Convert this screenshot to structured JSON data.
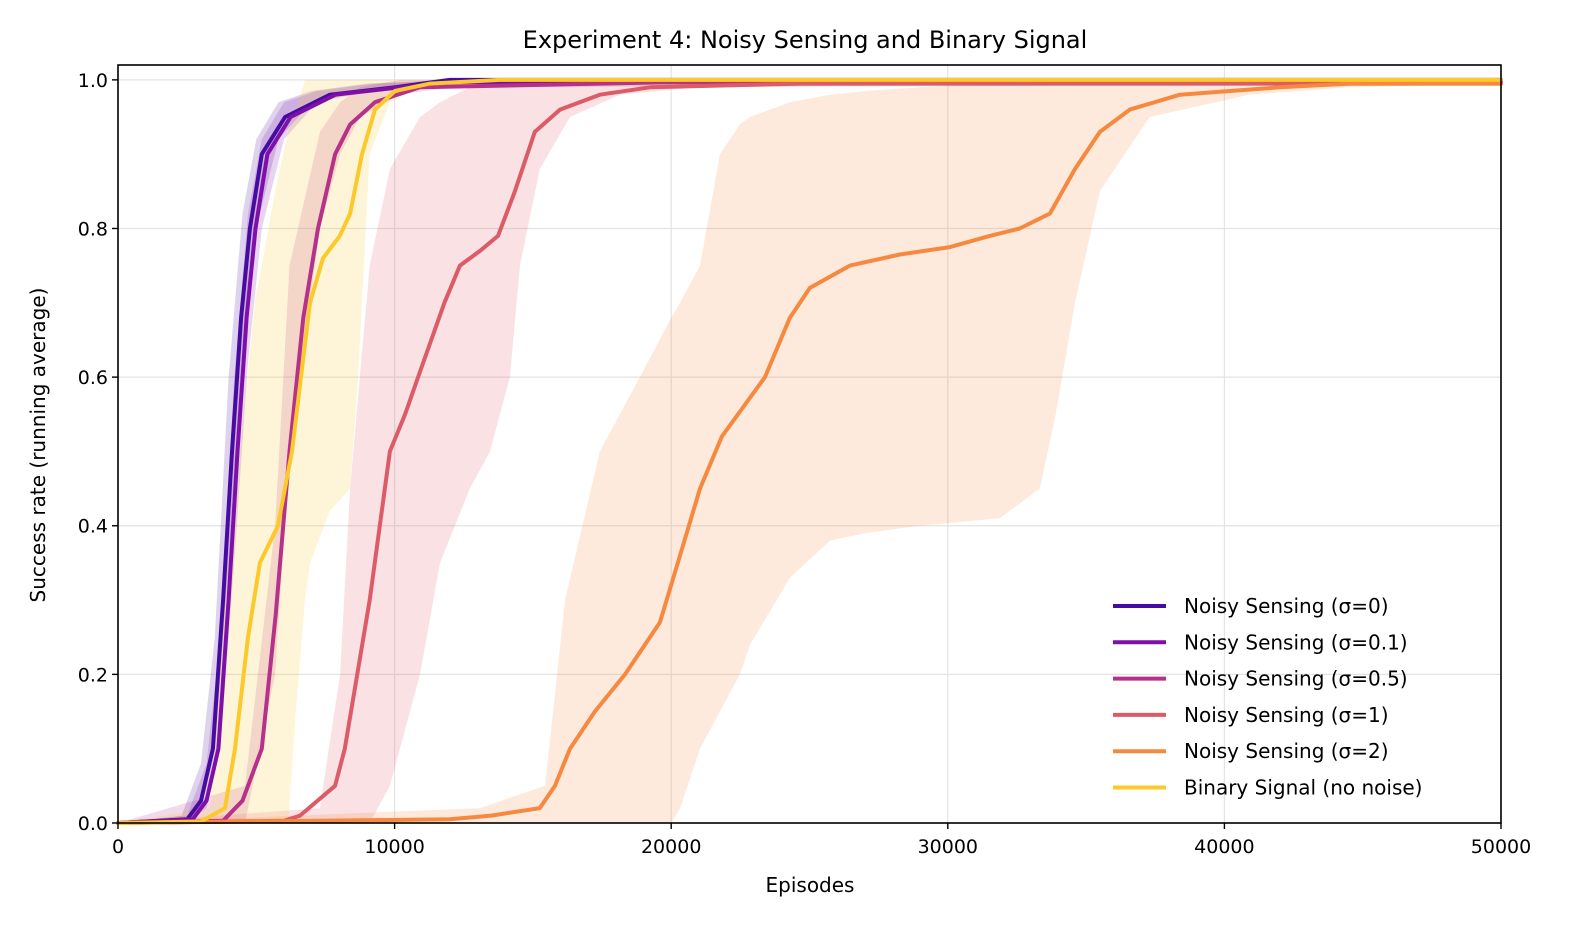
{
  "chart_data": {
    "type": "line",
    "title": "Experiment 4: Noisy Sensing and Binary Signal",
    "xlabel": "Episodes",
    "ylabel": "Success rate (running average)",
    "xlim": [
      0,
      50000
    ],
    "ylim": [
      0,
      1.02
    ],
    "xticks": [
      0,
      10000,
      20000,
      30000,
      40000,
      50000
    ],
    "xtick_labels": [
      "0",
      "10000",
      "20000",
      "30000",
      "40000",
      "50000"
    ],
    "yticks": [
      0,
      0.2,
      0.4,
      0.6,
      0.8,
      1.0
    ],
    "ytick_labels": [
      "0.0",
      "0.2",
      "0.4",
      "0.6",
      "0.8",
      "1.0"
    ],
    "grid": true,
    "legend_position": "lower-right",
    "series": [
      {
        "name": "Noisy Sensing (σ=0)",
        "color": "#460ba0",
        "x": [
          0,
          2500,
          3000,
          3430,
          3800,
          4120,
          4450,
          4770,
          5200,
          6040,
          7660,
          10000,
          12000,
          50000
        ],
        "y": [
          0,
          0.005,
          0.03,
          0.1,
          0.3,
          0.5,
          0.68,
          0.8,
          0.9,
          0.95,
          0.98,
          0.99,
          1.0,
          1.0
        ],
        "band": {
          "x": [
            0,
            2300,
            3000,
            3500,
            4000,
            4500,
            5000,
            5800,
            7000,
            9000,
            12000,
            50000
          ],
          "lower": [
            0,
            0,
            0.02,
            0.1,
            0.35,
            0.62,
            0.8,
            0.92,
            0.97,
            0.985,
            0.995,
            1.0
          ],
          "upper": [
            0,
            0.01,
            0.08,
            0.25,
            0.6,
            0.82,
            0.92,
            0.97,
            0.985,
            0.995,
            1.0,
            1.0
          ]
        }
      },
      {
        "name": "Noisy Sensing (σ=0.1)",
        "color": "#7e0fa8",
        "x": [
          0,
          2700,
          3200,
          3630,
          4000,
          4320,
          4650,
          4970,
          5400,
          6240,
          7860,
          10200,
          12200,
          50000
        ],
        "y": [
          0,
          0.005,
          0.03,
          0.1,
          0.3,
          0.5,
          0.68,
          0.8,
          0.9,
          0.95,
          0.98,
          0.99,
          0.997,
          0.997
        ],
        "band": {
          "x": [
            0,
            2500,
            3200,
            3700,
            4200,
            4700,
            5200,
            6000,
            7200,
            9200,
            12200,
            50000
          ],
          "lower": [
            0,
            0,
            0.02,
            0.1,
            0.35,
            0.62,
            0.8,
            0.92,
            0.97,
            0.985,
            0.995,
            0.995
          ],
          "upper": [
            0,
            0.01,
            0.08,
            0.25,
            0.6,
            0.82,
            0.92,
            0.97,
            0.985,
            0.995,
            1.0,
            1.0
          ]
        }
      },
      {
        "name": "Noisy Sensing (σ=0.5)",
        "color": "#b5318a",
        "x": [
          0,
          3800,
          4500,
          5200,
          5700,
          6200,
          6700,
          7230,
          7850,
          8390,
          9290,
          10900,
          20000,
          50000
        ],
        "y": [
          0,
          0.003,
          0.03,
          0.1,
          0.28,
          0.5,
          0.68,
          0.8,
          0.9,
          0.94,
          0.97,
          0.99,
          0.997,
          0.997
        ],
        "band": {
          "x": [
            0,
            4590,
            5680,
            6200,
            7300,
            8030,
            8750,
            10200,
            12000,
            50000
          ],
          "lower": [
            0,
            0,
            0.2,
            0.5,
            0.8,
            0.9,
            0.95,
            0.98,
            0.99,
            0.995
          ],
          "upper": [
            0,
            0.05,
            0.4,
            0.75,
            0.93,
            0.97,
            0.99,
            1.0,
            1.0,
            1.0
          ]
        }
      },
      {
        "name": "Noisy Sensing (σ=1)",
        "color": "#dc5b67",
        "x": [
          0,
          6000,
          6580,
          7850,
          8200,
          9100,
          9830,
          10380,
          10850,
          11800,
          12360,
          13090,
          13740,
          14350,
          15070,
          15980,
          17420,
          19230,
          24650,
          50000
        ],
        "y": [
          0,
          0.003,
          0.01,
          0.05,
          0.1,
          0.3,
          0.5,
          0.55,
          0.6,
          0.7,
          0.75,
          0.77,
          0.79,
          0.85,
          0.93,
          0.96,
          0.98,
          0.99,
          0.995,
          0.995
        ],
        "band": {
          "x": [
            0,
            7300,
            8030,
            8390,
            9100,
            9830,
            10920,
            11640,
            12720,
            13450,
            14170,
            14530,
            15250,
            16340,
            18150,
            21000,
            50000
          ],
          "lower": [
            0,
            0,
            0,
            0,
            0,
            0.05,
            0.2,
            0.35,
            0.45,
            0.5,
            0.6,
            0.75,
            0.88,
            0.95,
            0.98,
            0.99,
            0.995
          ],
          "upper": [
            0,
            0.02,
            0.2,
            0.45,
            0.75,
            0.88,
            0.95,
            0.97,
            0.99,
            0.995,
            1.0,
            1.0,
            1.0,
            1.0,
            1.0,
            1.0,
            1.0
          ]
        }
      },
      {
        "name": "Noisy Sensing (σ=2)",
        "color": "#f6893f",
        "x": [
          0,
          12000,
          13500,
          15250,
          15800,
          16340,
          17240,
          18330,
          19590,
          20240,
          21040,
          21830,
          23390,
          24290,
          25015,
          26460,
          28270,
          30075,
          31520,
          32600,
          33690,
          34600,
          35500,
          36580,
          38390,
          40200,
          42000,
          44540,
          50000
        ],
        "y": [
          0,
          0.005,
          0.01,
          0.02,
          0.05,
          0.1,
          0.15,
          0.2,
          0.27,
          0.35,
          0.45,
          0.52,
          0.6,
          0.68,
          0.72,
          0.75,
          0.765,
          0.775,
          0.79,
          0.8,
          0.82,
          0.88,
          0.93,
          0.96,
          0.98,
          0.985,
          0.99,
          0.995,
          0.995
        ],
        "band": {
          "x": [
            0,
            13090,
            15440,
            16160,
            17420,
            18870,
            20000,
            20320,
            21040,
            21760,
            22480,
            22850,
            24290,
            25740,
            27000,
            29000,
            31880,
            33330,
            33900,
            34600,
            35500,
            37300,
            40900,
            44500,
            50000
          ],
          "lower": [
            0,
            0,
            0,
            0,
            0,
            0,
            0,
            0.02,
            0.1,
            0.15,
            0.2,
            0.24,
            0.33,
            0.38,
            0.39,
            0.4,
            0.41,
            0.45,
            0.55,
            0.7,
            0.85,
            0.95,
            0.98,
            0.99,
            0.995
          ],
          "upper": [
            0,
            0.02,
            0.05,
            0.3,
            0.5,
            0.6,
            0.68,
            0.7,
            0.75,
            0.9,
            0.94,
            0.95,
            0.97,
            0.98,
            0.985,
            0.99,
            0.995,
            1.0,
            1.0,
            1.0,
            1.0,
            1.0,
            1.0,
            1.0,
            1.0
          ]
        }
      },
      {
        "name": "Binary Signal (no noise)",
        "color": "#fcc92a",
        "x": [
          0,
          3000,
          3870,
          4230,
          4700,
          5130,
          5780,
          6290,
          6940,
          7410,
          8020,
          8390,
          8820,
          9290,
          10010,
          11280,
          13800,
          50000
        ],
        "y": [
          0,
          0.002,
          0.02,
          0.1,
          0.25,
          0.35,
          0.4,
          0.5,
          0.7,
          0.76,
          0.79,
          0.82,
          0.9,
          0.96,
          0.985,
          0.995,
          1.0,
          1.0
        ],
        "band": {
          "x": [
            0,
            3325,
            3870,
            4950,
            5680,
            6150,
            6430,
            6760,
            6940,
            7660,
            8390,
            8680,
            9100,
            9830,
            10920,
            50000
          ],
          "lower": [
            0,
            0,
            0,
            0,
            0,
            0,
            0.15,
            0.3,
            0.35,
            0.42,
            0.45,
            0.6,
            0.9,
            0.97,
            0.99,
            1.0
          ],
          "upper": [
            0,
            0.02,
            0.3,
            0.7,
            0.85,
            0.93,
            0.96,
            1.0,
            1.0,
            1.0,
            1.0,
            1.0,
            1.0,
            1.0,
            1.0,
            1.0
          ]
        }
      }
    ]
  }
}
